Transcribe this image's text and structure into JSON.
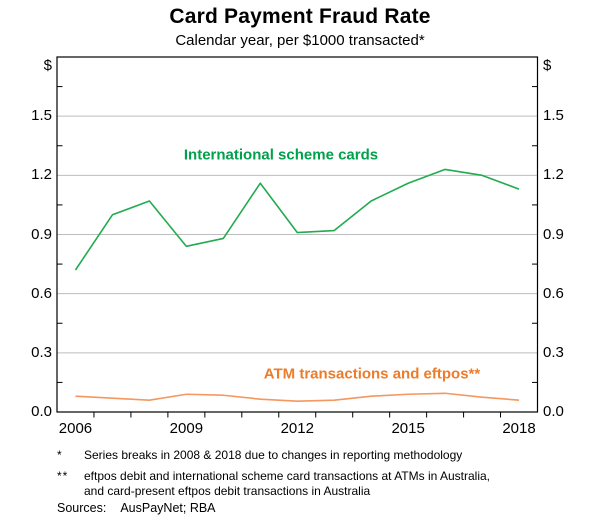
{
  "chart_data": {
    "type": "line",
    "title": "Card Payment Fraud Rate",
    "subtitle": "Calendar year, per $1000 transacted*",
    "unit_label": "$",
    "x": [
      2006,
      2007,
      2008,
      2009,
      2010,
      2011,
      2012,
      2013,
      2014,
      2015,
      2016,
      2017,
      2018
    ],
    "series": [
      {
        "name": "International scheme cards",
        "color": "#22ab4f",
        "label_color": "#00a14b",
        "values": [
          0.72,
          1.0,
          1.07,
          0.84,
          0.88,
          1.16,
          0.91,
          0.92,
          1.07,
          1.16,
          1.23,
          1.2,
          1.13
        ]
      },
      {
        "name": "ATM transactions and eftpos**",
        "color": "#f5975f",
        "label_color": "#ed7c2a",
        "values": [
          0.08,
          0.07,
          0.06,
          0.09,
          0.085,
          0.065,
          0.055,
          0.06,
          0.08,
          0.09,
          0.095,
          0.075,
          0.06
        ]
      }
    ],
    "ylim": [
      0,
      1.8
    ],
    "yticks": [
      0.0,
      0.3,
      0.6,
      0.9,
      1.2,
      1.5
    ],
    "xlim": [
      2005.5,
      2018.5
    ],
    "xticks": [
      2006,
      2009,
      2012,
      2015,
      2018
    ],
    "grid": "horizontal",
    "gridline_color": "#bdbdbd",
    "legend_position": "inline-annotations"
  },
  "footnotes": [
    {
      "marker": "*",
      "text": "Series breaks in 2008 & 2018 due to changes in reporting methodology"
    },
    {
      "marker": "**",
      "text": "eftpos debit and international scheme card transactions at ATMs in Australia, and card-present eftpos debit transactions in Australia"
    }
  ],
  "sources": {
    "label": "Sources:",
    "text": "AusPayNet; RBA"
  }
}
